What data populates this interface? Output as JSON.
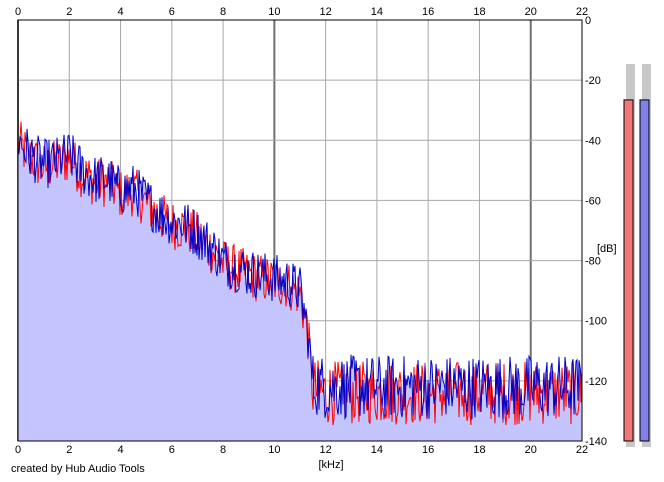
{
  "credit_text": "created by Hub Audio Tools",
  "chart_data": {
    "type": "area",
    "title": "",
    "xlabel": "[kHz]",
    "ylabel": "[dB]",
    "xlim": [
      0,
      22
    ],
    "ylim": [
      -140,
      0
    ],
    "x_ticks": [
      "0",
      "2",
      "4",
      "6",
      "8",
      "10",
      "12",
      "14",
      "16",
      "18",
      "20",
      "22"
    ],
    "y_ticks": [
      "0",
      "-20",
      "-40",
      "-60",
      "-80",
      "-100",
      "-120",
      "-140"
    ],
    "grid": true,
    "legend": "none",
    "series": [
      {
        "color": "#0000c8",
        "fill": "#c4c4ff",
        "x": [
          0,
          0.5,
          1,
          1.5,
          2,
          2.5,
          3,
          3.5,
          4,
          4.5,
          5,
          5.5,
          6,
          6.5,
          7,
          7.5,
          8,
          8.5,
          9,
          9.5,
          10,
          10.5,
          11,
          11.3,
          11.5,
          12,
          13,
          14,
          15,
          16,
          17,
          18,
          19,
          20,
          21,
          22
        ],
        "values": [
          -40,
          -45,
          -48,
          -47,
          -45,
          -50,
          -53,
          -53,
          -57,
          -56,
          -60,
          -64,
          -67,
          -68,
          -71,
          -75,
          -80,
          -82,
          -84,
          -85,
          -86,
          -87,
          -90,
          -103,
          -121,
          -122,
          -122,
          -122,
          -122,
          -122,
          -122,
          -122,
          -122,
          -122,
          -122,
          -122
        ]
      },
      {
        "color": "#ff0000",
        "x": [
          0,
          0.5,
          1,
          1.5,
          2,
          2.5,
          3,
          3.5,
          4,
          4.5,
          5,
          5.5,
          6,
          6.5,
          7,
          7.5,
          8,
          8.5,
          9,
          9.5,
          10,
          10.5,
          11,
          11.3,
          11.5,
          12,
          13,
          14,
          15,
          16,
          17,
          18,
          19,
          20,
          21,
          22
        ],
        "values": [
          -41,
          -46,
          -49,
          -48,
          -46,
          -51,
          -54,
          -54,
          -58,
          -57,
          -61,
          -65,
          -68,
          -69,
          -72,
          -76,
          -81,
          -83,
          -85,
          -86,
          -87,
          -88,
          -91,
          -104,
          -123,
          -124,
          -124,
          -124,
          -124,
          -124,
          -124,
          -124,
          -124,
          -124,
          -124,
          -124
        ]
      }
    ],
    "level_meters": [
      {
        "color": "#f07878",
        "level_db": -14
      },
      {
        "color": "#8080e8",
        "level_db": -14
      }
    ]
  }
}
